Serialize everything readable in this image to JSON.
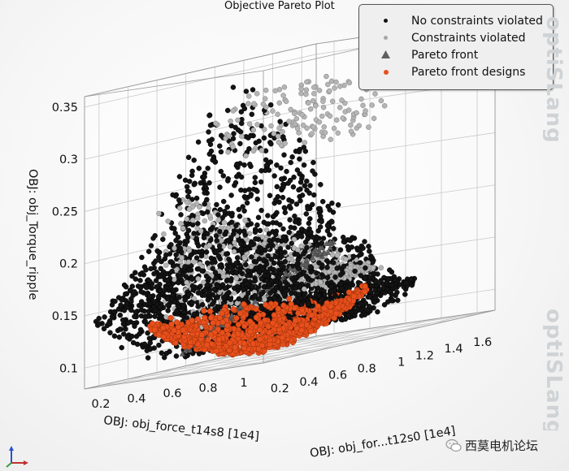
{
  "chart_data": {
    "type": "scatter",
    "projection": "3d",
    "title": "Objective Pareto Plot",
    "x_axis": {
      "label": "OBJ: obj_force_t14s8 [1e4]",
      "ticks": [
        "1",
        "0.8",
        "0.6",
        "0.4",
        "0.2"
      ],
      "range": [
        0.1,
        1.1
      ]
    },
    "y_axis": {
      "label": "OBJ: obj_for...t12s0 [1e4]",
      "ticks": [
        "0.2",
        "0.4",
        "0.6",
        "0.8",
        "1",
        "1.2",
        "1.4",
        "1.6"
      ],
      "range": [
        0.1,
        1.7
      ]
    },
    "z_axis": {
      "label": "OBJ: obj_Torque_ripple",
      "ticks": [
        "0.1",
        "0.15",
        "0.2",
        "0.25",
        "0.3",
        "0.35"
      ],
      "range": [
        0.08,
        0.36
      ]
    },
    "grid": true,
    "legend": {
      "position": "top-right",
      "entries": [
        {
          "label": "No constraints violated",
          "marker": "circle",
          "color": "#111111"
        },
        {
          "label": "Constraints violated",
          "marker": "circle",
          "color": "#a8a8a8"
        },
        {
          "label": "Pareto front",
          "marker": "triangle",
          "color": "#606060"
        },
        {
          "label": "Pareto front designs",
          "marker": "circle",
          "color": "#e8501c"
        }
      ]
    },
    "series": [
      {
        "name": "No constraints violated",
        "color": "#111111",
        "count": 2400,
        "distribution": "dense cloud, torque ripple 0.09–0.35, rising toward low obj_force_t14s8 and mid obj_for...t12s0"
      },
      {
        "name": "Constraints violated",
        "color": "#a8a8a8",
        "count": 700,
        "distribution": "scattered inside the cloud, forming a diagonal band near the Pareto front, plus sparse points at high torque ripple (0.27–0.33)"
      },
      {
        "name": "Pareto front",
        "color": "#606060",
        "count": 120,
        "distribution": "curved ridge along the lower envelope, torque ripple ≈0.10–0.17"
      },
      {
        "name": "Pareto front designs",
        "color": "#e8501c",
        "count": 900,
        "distribution": "bowl-shaped surface at the bottom of the cloud, torque ripple ≈0.08–0.13"
      }
    ]
  },
  "watermark": "optiSLang",
  "watermark_bottom": "optiSLang",
  "forum_label": "西莫电机论坛"
}
